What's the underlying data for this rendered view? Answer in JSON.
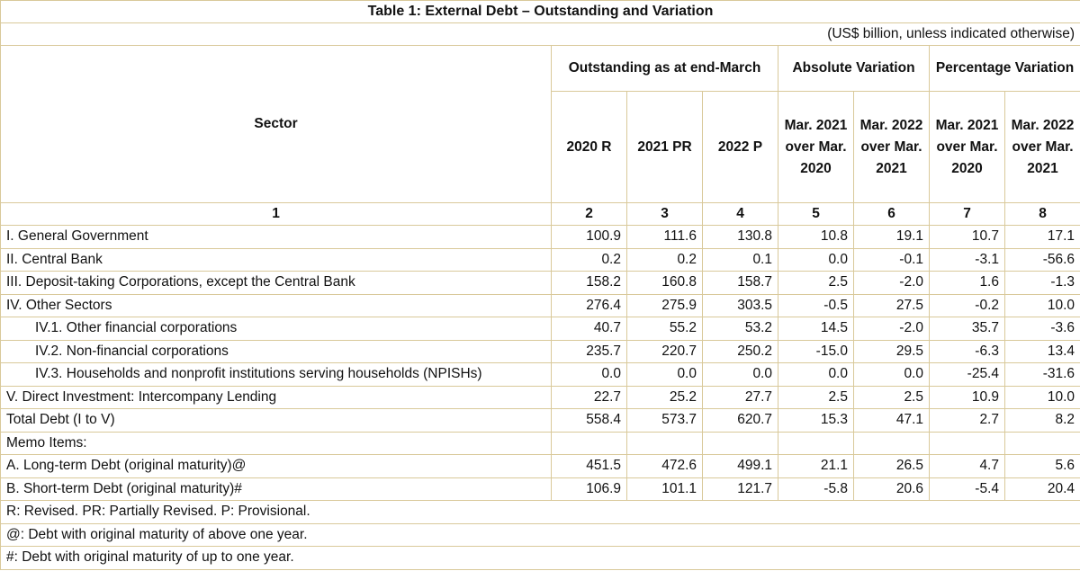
{
  "title": "Table 1: External Debt – Outstanding and Variation",
  "unit_note": "(US$ billion, unless indicated otherwise)",
  "headers": {
    "sector": "Sector",
    "outstanding": "Outstanding as at end-March",
    "absolute": "Absolute Variation",
    "percentage": "Percentage Variation",
    "sub": [
      "2020 R",
      "2021 PR",
      "2022 P",
      "Mar. 2021 over Mar. 2020",
      "Mar. 2022 over Mar. 2021",
      "Mar. 2021 over Mar. 2020",
      "Mar. 2022 over Mar. 2021"
    ],
    "col_numbers": [
      "1",
      "2",
      "3",
      "4",
      "5",
      "6",
      "7",
      "8"
    ]
  },
  "rows": [
    {
      "label": "I. General Government",
      "values": [
        "100.9",
        "111.6",
        "130.8",
        "10.8",
        "19.1",
        "10.7",
        "17.1"
      ]
    },
    {
      "label": "II. Central Bank",
      "values": [
        "0.2",
        "0.2",
        "0.1",
        "0.0",
        "-0.1",
        "-3.1",
        "-56.6"
      ]
    },
    {
      "label": "III. Deposit-taking Corporations, except the Central Bank",
      "values": [
        "158.2",
        "160.8",
        "158.7",
        "2.5",
        "-2.0",
        "1.6",
        "-1.3"
      ]
    },
    {
      "label": "IV. Other Sectors",
      "values": [
        "276.4",
        "275.9",
        "303.5",
        "-0.5",
        "27.5",
        "-0.2",
        "10.0"
      ]
    },
    {
      "label": "IV.1. Other financial corporations",
      "values": [
        "40.7",
        "55.2",
        "53.2",
        "14.5",
        "-2.0",
        "35.7",
        "-3.6"
      ]
    },
    {
      "label": "IV.2. Non-financial corporations",
      "values": [
        "235.7",
        "220.7",
        "250.2",
        "-15.0",
        "29.5",
        "-6.3",
        "13.4"
      ]
    },
    {
      "label": "IV.3. Households and nonprofit institutions serving households (NPISHs)",
      "values": [
        "0.0",
        "0.0",
        "0.0",
        "0.0",
        "0.0",
        "-25.4",
        "-31.6"
      ]
    },
    {
      "label": "V. Direct Investment: Intercompany Lending",
      "values": [
        "22.7",
        "25.2",
        "27.7",
        "2.5",
        "2.5",
        "10.9",
        "10.0"
      ]
    },
    {
      "label": "Total Debt (I to V)",
      "values": [
        "558.4",
        "573.7",
        "620.7",
        "15.3",
        "47.1",
        "2.7",
        "8.2"
      ]
    },
    {
      "label": "Memo Items:",
      "values": [
        "",
        "",
        "",
        "",
        "",
        "",
        ""
      ]
    },
    {
      "label": "A. Long-term Debt (original maturity)@",
      "values": [
        "451.5",
        "472.6",
        "499.1",
        "21.1",
        "26.5",
        "4.7",
        "5.6"
      ]
    },
    {
      "label": "B. Short-term Debt (original maturity)#",
      "values": [
        "106.9",
        "101.1",
        "121.7",
        "-5.8",
        "20.6",
        "-5.4",
        "20.4"
      ]
    }
  ],
  "footnotes": [
    "R: Revised. PR: Partially Revised. P: Provisional.",
    "@: Debt with original maturity of above one year.",
    "#: Debt with original maturity of up to one year."
  ]
}
